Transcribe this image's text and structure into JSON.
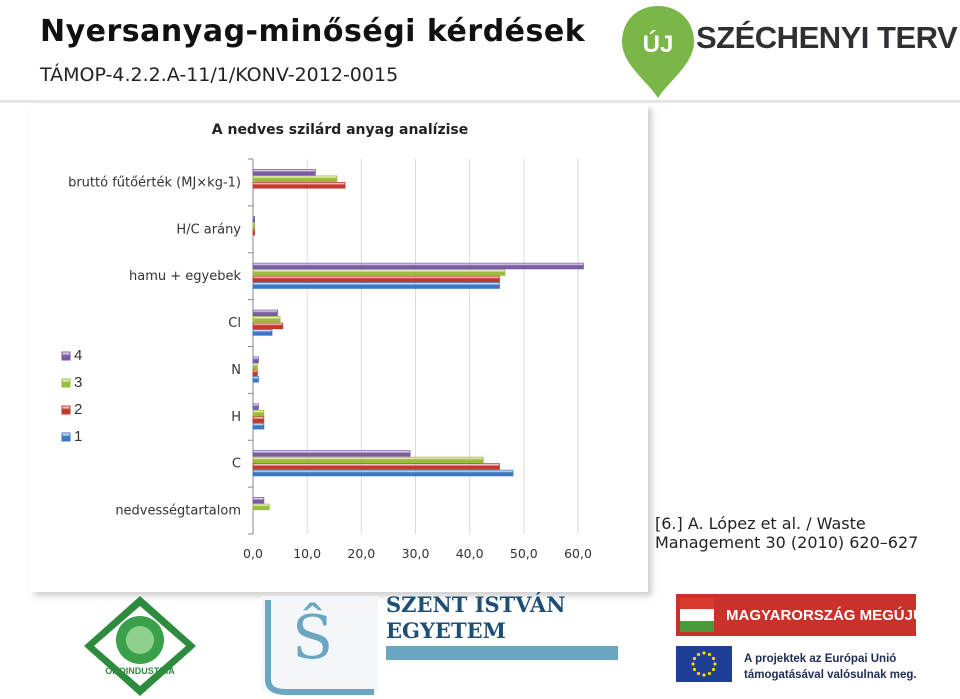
{
  "header": {
    "title": "Nyersanyag-minőségi kérdések",
    "subtitle": "TÁMOP-4.2.2.A-11/1/KONV-2012-0015",
    "brand_logo_text": "ÚJ SZÉCHENYI TERV"
  },
  "citation": {
    "line1": "[6.] A. López et al. / Waste",
    "line2": "Management 30 (2010) 620–627"
  },
  "footer": {
    "university": [
      "SZENT ISTVÁN",
      "EGYETEM"
    ],
    "banner": "MAGYARORSZÁG MEGÚJUL",
    "eu_text": [
      "A projektek az Európai Unió",
      "támogatásával valósulnak meg."
    ],
    "logo_left_text": "ÖKOINDUSTRIA"
  },
  "colors": {
    "series_4": "#7b5aa6",
    "series_3": "#9bbb3c",
    "series_2": "#c0392b",
    "series_1": "#3a78c2",
    "brand_green": "#7ab648",
    "banner_red": "#c8322b",
    "university_blue": "#1d4f76"
  },
  "chart_data": {
    "type": "bar",
    "orientation": "horizontal",
    "title": "A nedves szilárd anyag analízise",
    "categories": [
      "bruttó fűtőérték (MJ×kg-1)",
      "H/C arány",
      "hamu + egyebek",
      "Cl",
      "N",
      "H",
      "C",
      "nedvességtartalom"
    ],
    "series": [
      {
        "name": "4",
        "color": "#7b5aa6",
        "values": [
          11.5,
          0.3,
          61.0,
          4.5,
          1.0,
          1.0,
          29.0,
          2.0
        ]
      },
      {
        "name": "3",
        "color": "#9bbb3c",
        "values": [
          15.5,
          0.3,
          46.5,
          5.0,
          0.8,
          2.0,
          42.5,
          3.0
        ]
      },
      {
        "name": "2",
        "color": "#c0392b",
        "values": [
          17.0,
          0.3,
          45.5,
          5.5,
          0.8,
          2.0,
          45.5,
          0.0
        ]
      },
      {
        "name": "1",
        "color": "#3a78c2",
        "values": [
          0.0,
          0.0,
          45.5,
          3.5,
          1.0,
          2.0,
          48.0,
          0.0
        ]
      }
    ],
    "xlim": [
      0,
      60
    ],
    "x_ticks": [
      "0,0",
      "10,0",
      "20,0",
      "30,0",
      "40,0",
      "50,0",
      "60,0"
    ],
    "legend_position": "left",
    "grid": true
  }
}
